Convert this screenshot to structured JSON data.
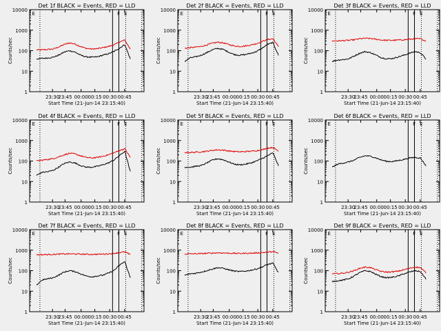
{
  "colors": {
    "background": "#efefef",
    "events": "#000000",
    "lld": "#e00000",
    "axis": "#000000"
  },
  "shared": {
    "xlabel": "Start Time (21-Jun-14 23:15:40)",
    "ylabel": "Counts/sec",
    "x_tick_labels": [
      "23:30",
      "23:45",
      "00:00",
      "00:15",
      "00:30",
      "00:45"
    ],
    "y_tick_labels": [
      "1",
      "10",
      "100",
      "1000",
      "10000"
    ],
    "flag_labels": [
      "E",
      "F",
      "E"
    ]
  },
  "chart_data": [
    {
      "type": "line",
      "title": "Det 1f BLACK = Events, RED = LLD",
      "xlabel": "Start Time (21-Jun-14 23:15:40)",
      "ylabel": "Counts/sec",
      "ylim": [
        1,
        10000
      ],
      "y_scale": "log",
      "series": [
        {
          "name": "Events",
          "color": "#000000",
          "y": [
            40,
            42,
            44,
            48,
            60,
            85,
            100,
            85,
            60,
            50,
            48,
            50,
            60,
            70,
            90,
            130,
            200,
            40
          ]
        },
        {
          "name": "LLD",
          "color": "#e00000",
          "y": [
            110,
            110,
            115,
            120,
            150,
            200,
            240,
            210,
            160,
            130,
            120,
            125,
            140,
            160,
            190,
            260,
            330,
            120
          ]
        }
      ]
    },
    {
      "type": "line",
      "title": "Det 2f BLACK = Events, RED = LLD",
      "xlabel": "Start Time (21-Jun-14 23:15:40)",
      "ylabel": "Counts/sec",
      "ylim": [
        1,
        10000
      ],
      "y_scale": "log",
      "series": [
        {
          "name": "Events",
          "color": "#000000",
          "y": [
            30,
            45,
            50,
            60,
            80,
            110,
            130,
            115,
            85,
            65,
            60,
            65,
            75,
            90,
            130,
            200,
            250,
            60
          ]
        },
        {
          "name": "LLD",
          "color": "#e00000",
          "y": [
            130,
            140,
            150,
            160,
            190,
            230,
            260,
            240,
            200,
            170,
            160,
            170,
            190,
            220,
            280,
            350,
            380,
            160
          ]
        }
      ]
    },
    {
      "type": "line",
      "title": "Det 3f BLACK = Events, RED = LLD",
      "xlabel": "Start Time (21-Jun-14 23:15:40)",
      "ylabel": "Counts/sec",
      "ylim": [
        1,
        10000
      ],
      "y_scale": "log",
      "series": [
        {
          "name": "Events",
          "color": "#000000",
          "y": [
            30,
            35,
            37,
            40,
            55,
            75,
            90,
            80,
            60,
            45,
            40,
            42,
            50,
            60,
            75,
            90,
            80,
            40
          ]
        },
        {
          "name": "LLD",
          "color": "#e00000",
          "y": [
            300,
            300,
            310,
            320,
            340,
            380,
            400,
            390,
            360,
            330,
            320,
            320,
            330,
            340,
            360,
            380,
            380,
            300
          ]
        }
      ]
    },
    {
      "type": "line",
      "title": "Det 4f BLACK = Events, RED = LLD",
      "xlabel": "Start Time (21-Jun-14 23:15:40)",
      "ylabel": "Counts/sec",
      "ylim": [
        1,
        10000
      ],
      "y_scale": "log",
      "series": [
        {
          "name": "Events",
          "color": "#000000",
          "y": [
            20,
            28,
            30,
            35,
            50,
            75,
            90,
            80,
            60,
            50,
            50,
            55,
            65,
            80,
            110,
            180,
            300,
            30
          ]
        },
        {
          "name": "LLD",
          "color": "#e00000",
          "y": [
            100,
            110,
            120,
            130,
            160,
            200,
            240,
            220,
            180,
            150,
            140,
            150,
            170,
            200,
            250,
            320,
            400,
            150
          ]
        }
      ]
    },
    {
      "type": "line",
      "title": "Det 5f BLACK = Events, RED = LLD",
      "xlabel": "Start Time (21-Jun-14 23:15:40)",
      "ylabel": "Counts/sec",
      "ylim": [
        1,
        10000
      ],
      "y_scale": "log",
      "series": [
        {
          "name": "Events",
          "color": "#000000",
          "y": [
            50,
            50,
            55,
            60,
            80,
            110,
            130,
            115,
            90,
            70,
            65,
            70,
            80,
            100,
            130,
            180,
            250,
            60
          ]
        },
        {
          "name": "LLD",
          "color": "#e00000",
          "y": [
            260,
            260,
            270,
            280,
            300,
            330,
            350,
            340,
            310,
            290,
            280,
            290,
            300,
            320,
            350,
            420,
            460,
            300
          ]
        }
      ]
    },
    {
      "type": "line",
      "title": "Det 6f BLACK = Events, RED = LLD",
      "xlabel": "Start Time (21-Jun-14 23:15:40)",
      "ylabel": "Counts/sec",
      "ylim": [
        1,
        10000
      ],
      "y_scale": "log",
      "series": [
        {
          "name": "Events",
          "color": "#000000",
          "y": [
            50,
            70,
            80,
            90,
            110,
            150,
            180,
            170,
            140,
            110,
            95,
            95,
            105,
            120,
            140,
            150,
            140,
            60
          ]
        }
      ]
    },
    {
      "type": "line",
      "title": "Det 7f BLACK = Events, RED = LLD",
      "xlabel": "Start Time (21-Jun-14 23:15:40)",
      "ylabel": "Counts/sec",
      "ylim": [
        1,
        10000
      ],
      "y_scale": "log",
      "series": [
        {
          "name": "Events",
          "color": "#000000",
          "y": [
            20,
            35,
            40,
            45,
            60,
            85,
            100,
            90,
            70,
            55,
            50,
            55,
            60,
            75,
            100,
            180,
            280,
            45
          ]
        },
        {
          "name": "LLD",
          "color": "#e00000",
          "y": [
            600,
            600,
            610,
            620,
            640,
            650,
            660,
            650,
            640,
            630,
            620,
            630,
            640,
            660,
            700,
            760,
            820,
            600
          ]
        }
      ]
    },
    {
      "type": "line",
      "title": "Det 8f BLACK = Events, RED = LLD",
      "xlabel": "Start Time (21-Jun-14 23:15:40)",
      "ylabel": "Counts/sec",
      "ylim": [
        1,
        10000
      ],
      "y_scale": "log",
      "series": [
        {
          "name": "Events",
          "color": "#000000",
          "y": [
            60,
            70,
            75,
            85,
            100,
            120,
            140,
            130,
            110,
            95,
            90,
            95,
            105,
            120,
            150,
            200,
            230,
            80
          ]
        },
        {
          "name": "LLD",
          "color": "#e00000",
          "y": [
            650,
            660,
            670,
            680,
            700,
            720,
            740,
            730,
            710,
            700,
            690,
            700,
            710,
            730,
            760,
            800,
            850,
            700
          ]
        }
      ]
    },
    {
      "type": "line",
      "title": "Det 9f BLACK = Events, RED = LLD",
      "xlabel": "Start Time (21-Jun-14 23:15:40)",
      "ylabel": "Counts/sec",
      "ylim": [
        1,
        10000
      ],
      "y_scale": "log",
      "series": [
        {
          "name": "Events",
          "color": "#000000",
          "y": [
            30,
            32,
            35,
            40,
            55,
            80,
            100,
            90,
            65,
            50,
            45,
            48,
            55,
            70,
            85,
            100,
            90,
            40
          ]
        },
        {
          "name": "LLD",
          "color": "#e00000",
          "y": [
            70,
            72,
            75,
            85,
            100,
            130,
            150,
            140,
            110,
            90,
            85,
            88,
            95,
            110,
            130,
            150,
            140,
            80
          ]
        }
      ]
    }
  ]
}
